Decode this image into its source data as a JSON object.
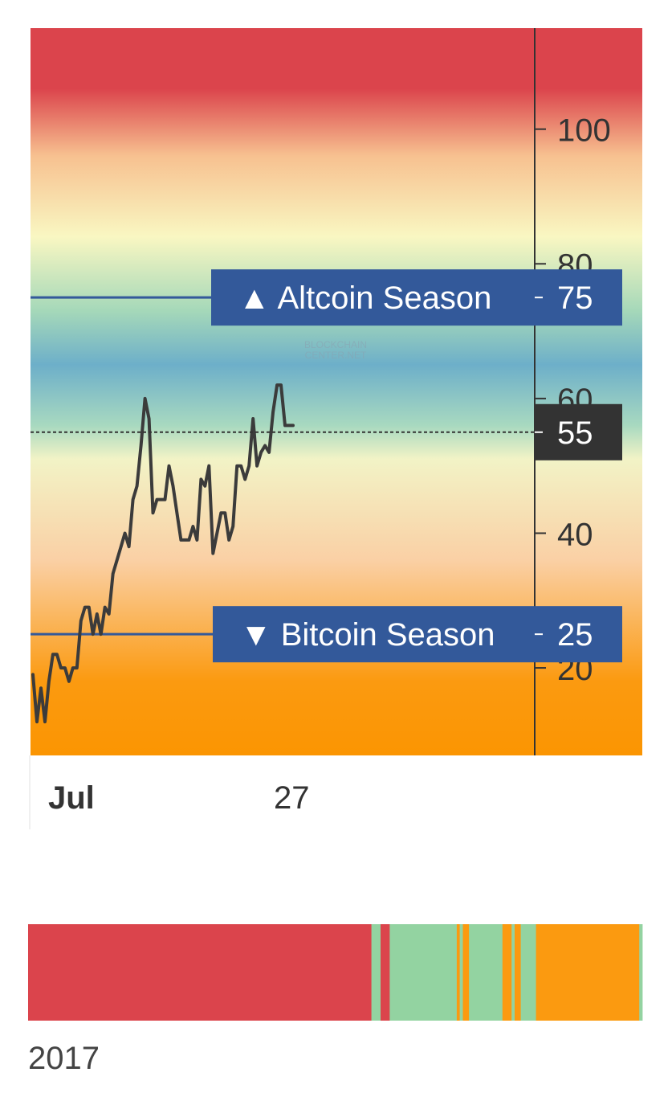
{
  "chart_data": [
    {
      "type": "line",
      "title": "",
      "xlabel": "",
      "ylabel": "",
      "ylim": [
        7,
        115
      ],
      "y_ticks": [
        20,
        40,
        60,
        80,
        100
      ],
      "x_tick_labels": [
        {
          "label": "Jul",
          "bold": true
        },
        {
          "label": "27",
          "bold": false
        }
      ],
      "grid": false,
      "background_gradient": [
        {
          "value": 115,
          "color": "#db444c"
        },
        {
          "value": 106,
          "color": "#db444c"
        },
        {
          "value": 96,
          "color": "#f7c190"
        },
        {
          "value": 84,
          "color": "#f9f7c2"
        },
        {
          "value": 73,
          "color": "#a5d8b9"
        },
        {
          "value": 65,
          "color": "#6dafc9"
        },
        {
          "value": 56,
          "color": "#a8d9c0"
        },
        {
          "value": 51,
          "color": "#f2f3c6"
        },
        {
          "value": 36,
          "color": "#fad0a5"
        },
        {
          "value": 18,
          "color": "#fb9a10"
        },
        {
          "value": 7,
          "color": "#fb9502"
        }
      ],
      "series": [
        {
          "color": "#3b3b3b",
          "values": [
            19,
            12,
            17,
            12,
            18,
            22,
            22,
            20,
            20,
            18,
            20,
            20,
            27,
            29,
            29,
            25,
            28,
            25,
            29,
            28,
            34,
            36,
            38,
            40,
            38,
            45,
            47,
            53,
            60,
            57,
            43,
            45,
            45,
            45,
            50,
            47,
            43,
            39,
            39,
            39,
            41,
            39,
            48,
            47,
            50,
            37,
            40,
            43,
            43,
            39,
            41,
            50,
            50,
            48,
            50,
            57,
            50,
            52,
            53,
            52,
            58,
            62,
            62,
            56,
            56,
            56
          ]
        }
      ],
      "current_value": {
        "label": "55",
        "value": 55,
        "color": "#333333"
      },
      "reference_lines": [
        {
          "name": "Altcoin Season",
          "value": 75,
          "label": "▲ Altcoin Season",
          "value_label": "75",
          "color": "#33599a"
        },
        {
          "name": "Bitcoin Season",
          "value": 25,
          "label": "▼ Bitcoin Season",
          "value_label": "25",
          "color": "#33599a"
        }
      ],
      "watermark": [
        "BLOCKCHAIN",
        "CENTER.NET"
      ]
    },
    {
      "type": "heatmap",
      "title": "",
      "x_tick_labels": [
        "2017"
      ],
      "segments": [
        {
          "from": 0.0,
          "to": 0.5589,
          "color": "#db444c"
        },
        {
          "from": 0.5589,
          "to": 0.5738,
          "color": "#93d3a1"
        },
        {
          "from": 0.5738,
          "to": 0.5887,
          "color": "#db444c"
        },
        {
          "from": 0.5887,
          "to": 0.6979,
          "color": "#93d3a1"
        },
        {
          "from": 0.6979,
          "to": 0.7028,
          "color": "#fb9a10"
        },
        {
          "from": 0.7028,
          "to": 0.7078,
          "color": "#93d3a1"
        },
        {
          "from": 0.7078,
          "to": 0.7178,
          "color": "#fb9a10"
        },
        {
          "from": 0.7178,
          "to": 0.7723,
          "color": "#93d3a1"
        },
        {
          "from": 0.7723,
          "to": 0.7872,
          "color": "#fb9a10"
        },
        {
          "from": 0.7872,
          "to": 0.7922,
          "color": "#93d3a1"
        },
        {
          "from": 0.7922,
          "to": 0.8021,
          "color": "#fb9a10"
        },
        {
          "from": 0.8021,
          "to": 0.8269,
          "color": "#93d3a1"
        },
        {
          "from": 0.8269,
          "to": 0.995,
          "color": "#fb9a10"
        },
        {
          "from": 0.995,
          "to": 1.0,
          "color": "#93d3a1"
        }
      ]
    }
  ]
}
